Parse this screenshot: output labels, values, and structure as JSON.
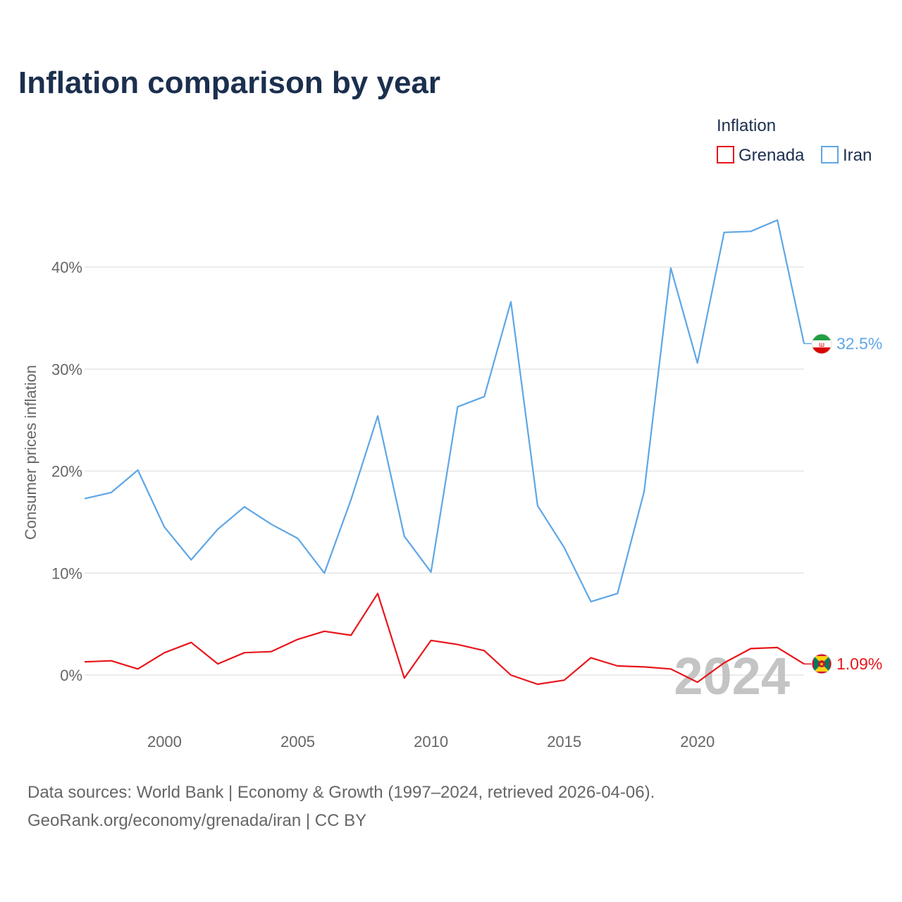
{
  "title": "Inflation comparison by year",
  "legend": {
    "title": "Inflation",
    "items": [
      {
        "label": "Grenada",
        "color": "#e8161b"
      },
      {
        "label": "Iran",
        "color": "#5ea6e6"
      }
    ]
  },
  "year_watermark": "2024",
  "source_line1": "Data sources: World Bank | Economy & Growth (1997–2024, retrieved 2026-04-06).",
  "source_line2": "GeoRank.org/economy/grenada/iran | CC BY",
  "chart_data": {
    "type": "line",
    "title": "Inflation comparison by year",
    "xlabel": "",
    "ylabel": "Consumer prices inflation",
    "x": [
      1997,
      1998,
      1999,
      2000,
      2001,
      2002,
      2003,
      2004,
      2005,
      2006,
      2007,
      2008,
      2009,
      2010,
      2011,
      2012,
      2013,
      2014,
      2015,
      2016,
      2017,
      2018,
      2019,
      2020,
      2021,
      2022,
      2023,
      2024
    ],
    "xticks": [
      2000,
      2005,
      2010,
      2015,
      2020
    ],
    "xlim": [
      1997,
      2024
    ],
    "yticks": [
      0,
      10,
      20,
      30,
      40
    ],
    "ytick_labels": [
      "0%",
      "10%",
      "20%",
      "30%",
      "40%"
    ],
    "ylim": [
      -3,
      46
    ],
    "grid": true,
    "series": [
      {
        "name": "Grenada",
        "color": "#e8161b",
        "end_label": "1.09%",
        "values": [
          1.3,
          1.4,
          0.6,
          2.2,
          3.2,
          1.1,
          2.2,
          2.3,
          3.5,
          4.3,
          3.9,
          8.0,
          -0.3,
          3.4,
          3.0,
          2.4,
          0.0,
          -0.9,
          -0.5,
          1.7,
          0.9,
          0.8,
          0.6,
          -0.7,
          1.2,
          2.6,
          2.7,
          1.09
        ]
      },
      {
        "name": "Iran",
        "color": "#5ea6e6",
        "end_label": "32.5%",
        "values": [
          17.3,
          17.9,
          20.1,
          14.5,
          11.3,
          14.3,
          16.5,
          14.8,
          13.4,
          10.0,
          17.2,
          25.4,
          13.6,
          10.1,
          26.3,
          27.3,
          36.6,
          16.6,
          12.5,
          7.2,
          8.0,
          18.0,
          39.9,
          30.6,
          43.4,
          43.5,
          44.6,
          32.5
        ]
      }
    ]
  }
}
